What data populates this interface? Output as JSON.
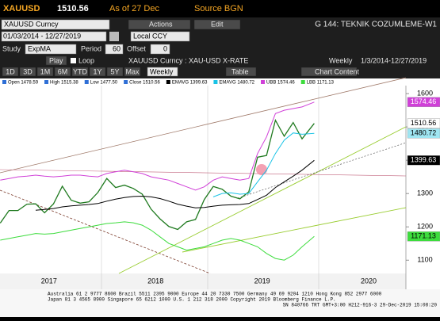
{
  "header": {
    "ticker": "XAUUSD",
    "price": "1510.56",
    "as_of": "As of 27 Dec",
    "source": "Source BGN"
  },
  "toolbar": {
    "security": "XAUUSD Curncy",
    "actions": "Actions",
    "edit": "Edit",
    "page": "G 144: TEKNIK COZUMLEME-W1",
    "date_range": "01/03/2014 - 12/27/2019",
    "currency": "Local CCY",
    "study_label": "Study",
    "study": "ExpMA",
    "period_label": "Period",
    "period": "60",
    "offset_label": "Offset",
    "offset": "0",
    "play": "Play",
    "loop": "Loop",
    "description": "XAUUSD Curncy : XAU-USD X-RATE",
    "frequency": "Weekly",
    "range": "1/3/2014-12/27/2019",
    "periods": [
      "1D",
      "3D",
      "1M",
      "6M",
      "YTD",
      "1Y",
      "5Y",
      "Max"
    ],
    "weekly": "Weekly",
    "table": "Table",
    "chart_content": "Chart Content"
  },
  "legend": [
    {
      "label": "Open 1478.59",
      "color": "#2f6fd6"
    },
    {
      "label": "High 1515.38",
      "color": "#2f6fd6"
    },
    {
      "label": "Low 1477.50",
      "color": "#2f6fd6"
    },
    {
      "label": "Close 1510.56",
      "color": "#2f6fd6"
    },
    {
      "label": "EMAVG 1399.63",
      "color": "#000000"
    },
    {
      "label": "EMAVG 1480.72",
      "color": "#19c3e6"
    },
    {
      "label": "UBB 1574.46",
      "color": "#d040d8"
    },
    {
      "label": "LBB 1171.13",
      "color": "#3ddc3d"
    }
  ],
  "chart_data": {
    "type": "line",
    "x": [
      2017.042,
      2017.125,
      2017.208,
      2017.292,
      2017.375,
      2017.458,
      2017.542,
      2017.625,
      2017.708,
      2017.792,
      2017.875,
      2017.958,
      2018.042,
      2018.125,
      2018.208,
      2018.292,
      2018.375,
      2018.458,
      2018.542,
      2018.625,
      2018.708,
      2018.792,
      2018.875,
      2018.958,
      2019.042,
      2019.125,
      2019.208,
      2019.292,
      2019.375,
      2019.458,
      2019.542,
      2019.625,
      2019.708,
      2019.792,
      2019.875,
      2019.99
    ],
    "series": [
      {
        "color": "#1f7a1f",
        "label_bg": "#ffffff",
        "label_fg": "#000000",
        "values": [
          1211,
          1249,
          1249,
          1268,
          1269,
          1242,
          1269,
          1322,
          1280,
          1271,
          1275,
          1303,
          1345,
          1318,
          1325,
          1315,
          1298,
          1253,
          1224,
          1201,
          1192,
          1215,
          1222,
          1282,
          1321,
          1313,
          1292,
          1284,
          1305,
          1409,
          1414,
          1520,
          1472,
          1513,
          1464,
          1510.56
        ]
      },
      {
        "color": "#d040d8",
        "label_bg": "#d040d8",
        "label_fg": "#ffffff",
        "values": [
          1340,
          1345,
          1350,
          1352,
          1355,
          1352,
          1350,
          1352,
          1355,
          1355,
          1352,
          1350,
          1360,
          1365,
          1370,
          1365,
          1360,
          1350,
          1345,
          1340,
          1330,
          1320,
          1310,
          1320,
          1340,
          1350,
          1345,
          1340,
          1345,
          1420,
          1470,
          1540,
          1550,
          1555,
          1560,
          1574.46
        ]
      },
      {
        "color": "#19c3e6",
        "label_bg": "#9fe6f2",
        "label_fg": "#000000",
        "values": [
          null,
          null,
          null,
          null,
          null,
          null,
          null,
          null,
          null,
          null,
          null,
          null,
          null,
          null,
          null,
          null,
          null,
          null,
          null,
          null,
          null,
          null,
          null,
          null,
          1290,
          1300,
          1302,
          1298,
          1300,
          1335,
          1370,
          1420,
          1460,
          1482,
          1478,
          1480.72
        ]
      },
      {
        "color": "#000000",
        "label_bg": "#000000",
        "label_fg": "#ffffff",
        "values": [
          null,
          null,
          null,
          null,
          1250,
          1252,
          1255,
          1260,
          1263,
          1265,
          1267,
          1270,
          1277,
          1283,
          1288,
          1291,
          1292,
          1290,
          1285,
          1277,
          1268,
          1262,
          1257,
          1258,
          1262,
          1265,
          1266,
          1267,
          1270,
          1282,
          1295,
          1318,
          1335,
          1352,
          1370,
          1399.63
        ]
      },
      {
        "color": "#3ddc3d",
        "label_bg": "#3ddc3d",
        "label_fg": "#000000",
        "values": [
          1160,
          1165,
          1170,
          1175,
          1180,
          1178,
          1180,
          1185,
          1190,
          1195,
          1200,
          1205,
          1210,
          1212,
          1215,
          1212,
          1205,
          1190,
          1170,
          1150,
          1140,
          1130,
          1135,
          1140,
          1150,
          1160,
          1165,
          1160,
          1150,
          1140,
          1120,
          1105,
          1100,
          1115,
          1140,
          1171.13
        ]
      }
    ],
    "xlim": [
      2017.04,
      2020.85
    ],
    "xticks": [
      {
        "value": 2017.5,
        "label": "2017"
      },
      {
        "value": 2018.5,
        "label": "2018"
      },
      {
        "value": 2019.5,
        "label": "2019"
      },
      {
        "value": 2020.5,
        "label": "2020"
      }
    ],
    "ylim": [
      1060,
      1624
    ],
    "yticks": [
      1100,
      1200,
      1300,
      1400,
      1500,
      1600
    ],
    "grid": false
  },
  "footer": [
    "Australia 61 2 9777 8600 Brazil 5511 2395 9000 Europe 44 20 7330 7500 Germany 49 69 9204 1210 Hong Kong 852 2977 6000",
    "Japan 81 3 4565 8900 Singapore 65 6212 1000 U.S. 1 212 318 2000 Copyright 2019 Bloomberg Finance L.P.",
    "SN 840766 TRT GMT+3:00 H212-916-3 29-Dec-2019 15:08:20"
  ]
}
